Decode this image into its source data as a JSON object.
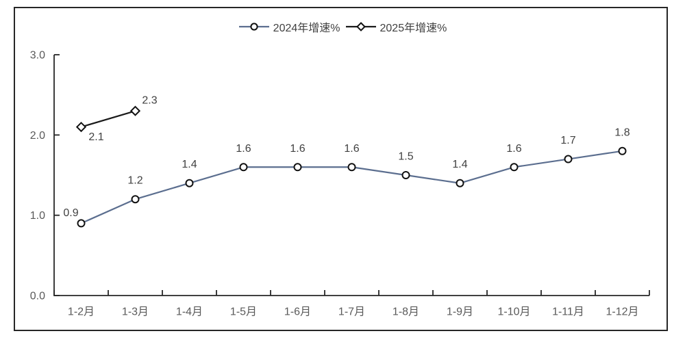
{
  "legend": {
    "items": [
      {
        "label": "2024年增速%",
        "marker": "circle"
      },
      {
        "label": "2025年增速%",
        "marker": "diamond"
      }
    ]
  },
  "colors": {
    "series_2024_line": "#5b6e8f",
    "series_2025_line": "#1a1a1a",
    "marker_stroke": "#111111",
    "marker_fill": "#ffffff",
    "axis": "#262626",
    "tick_label": "#595959",
    "data_label": "#404040",
    "frame_border": "#262626",
    "background": "#ffffff"
  },
  "chart_data": {
    "type": "line",
    "categories": [
      "1-2月",
      "1-3月",
      "1-4月",
      "1-5月",
      "1-6月",
      "1-7月",
      "1-8月",
      "1-9月",
      "1-10月",
      "1-11月",
      "1-12月"
    ],
    "series": [
      {
        "name": "2024年增速%",
        "marker": "circle",
        "color": "#5b6e8f",
        "values": [
          0.9,
          1.2,
          1.4,
          1.6,
          1.6,
          1.6,
          1.5,
          1.4,
          1.6,
          1.7,
          1.8
        ]
      },
      {
        "name": "2025年增速%",
        "marker": "diamond",
        "color": "#1a1a1a",
        "values": [
          2.1,
          2.3
        ]
      }
    ],
    "title": "",
    "xlabel": "",
    "ylabel": "",
    "ylim": [
      0,
      3
    ],
    "yticks": [
      "0.0",
      "1.0",
      "2.0",
      "3.0"
    ],
    "grid": false,
    "legend_position": "top",
    "data_labels": true
  }
}
